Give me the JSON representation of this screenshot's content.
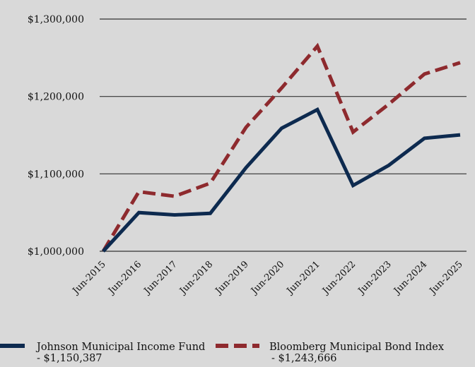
{
  "chart_data": {
    "type": "line",
    "title": "",
    "xlabel": "",
    "ylabel": "",
    "categories": [
      "Jun-2015",
      "Jun-2016",
      "Jun-2017",
      "Jun-2018",
      "Jun-2019",
      "Jun-2020",
      "Jun-2021",
      "Jun-2022",
      "Jun-2023",
      "Jun-2024",
      "Jun-2025"
    ],
    "ylim": [
      1000000,
      1300000
    ],
    "yticks": [
      1000000,
      1100000,
      1200000,
      1300000
    ],
    "ytick_labels": [
      "$1,000,000",
      "$1,100,000",
      "$1,200,000",
      "$1,300,000"
    ],
    "grid": true,
    "legend_position": "bottom",
    "series": [
      {
        "name": "Johnson Municipal Income Fund",
        "ending_label": "- $1,150,387",
        "color": "#0d2a4f",
        "dash": "solid",
        "values": [
          1000000,
          1050000,
          1047000,
          1049000,
          1108000,
          1159000,
          1183000,
          1085000,
          1111000,
          1146000,
          1150387
        ]
      },
      {
        "name": "Bloomberg Municipal Bond Index",
        "ending_label": "- $1,243,666",
        "color": "#8e2a2e",
        "dash": "dashed",
        "values": [
          1000000,
          1077000,
          1071000,
          1088000,
          1160000,
          1211000,
          1265000,
          1154000,
          1190000,
          1229000,
          1243666
        ]
      }
    ]
  }
}
